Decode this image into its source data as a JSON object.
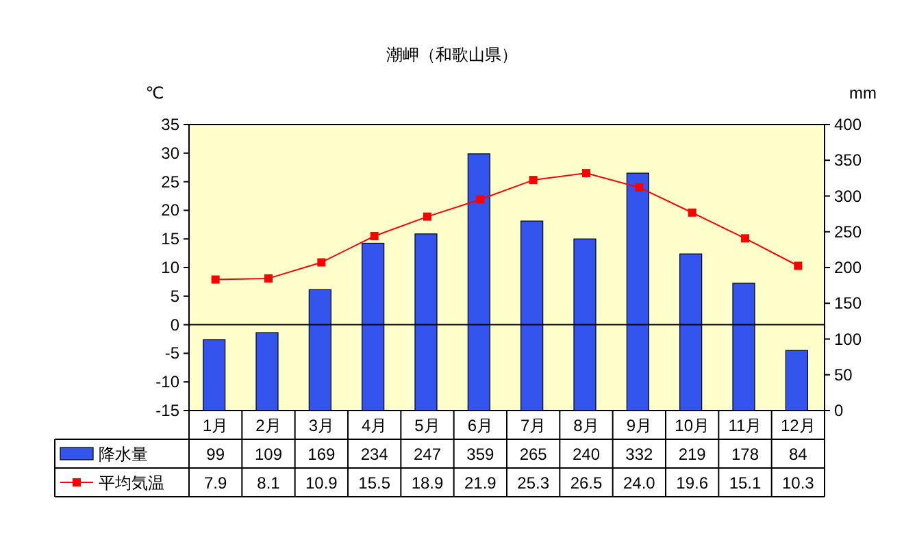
{
  "chart_data": {
    "type": "bar",
    "title": "潮岬（和歌山県）",
    "ylabel": "℃",
    "y2label": "mm",
    "categories": [
      "1月",
      "2月",
      "3月",
      "4月",
      "5月",
      "6月",
      "7月",
      "8月",
      "9月",
      "10月",
      "11月",
      "12月"
    ],
    "series": [
      {
        "name": "降水量",
        "axis": "y2",
        "color": "#3355ee",
        "values": [
          99,
          109,
          169,
          234,
          247,
          359,
          265,
          240,
          332,
          219,
          178,
          84
        ]
      },
      {
        "name": "平均気温",
        "type": "line",
        "axis": "y",
        "color": "#ff0000",
        "values": [
          7.9,
          8.1,
          10.9,
          15.5,
          18.9,
          21.9,
          25.3,
          26.5,
          24.0,
          19.6,
          15.1,
          10.3
        ],
        "value_labels": [
          "7.9",
          "8.1",
          "10.9",
          "15.5",
          "18.9",
          "21.9",
          "25.3",
          "26.5",
          "24.0",
          "19.6",
          "15.1",
          "10.3"
        ]
      }
    ],
    "ylim": [
      -15,
      35
    ],
    "yticks": [
      -15,
      -10,
      -5,
      0,
      5,
      10,
      15,
      20,
      25,
      30,
      35
    ],
    "y2lim": [
      0,
      400
    ],
    "y2ticks": [
      0,
      50,
      100,
      150,
      200,
      250,
      300,
      350,
      400
    ],
    "ref_lines": [
      {
        "axis": "y",
        "value": 0,
        "color": "#000000"
      }
    ],
    "marker": "square",
    "line_style": "solid",
    "data_labels": true,
    "legend": "bottom",
    "grid": false
  }
}
